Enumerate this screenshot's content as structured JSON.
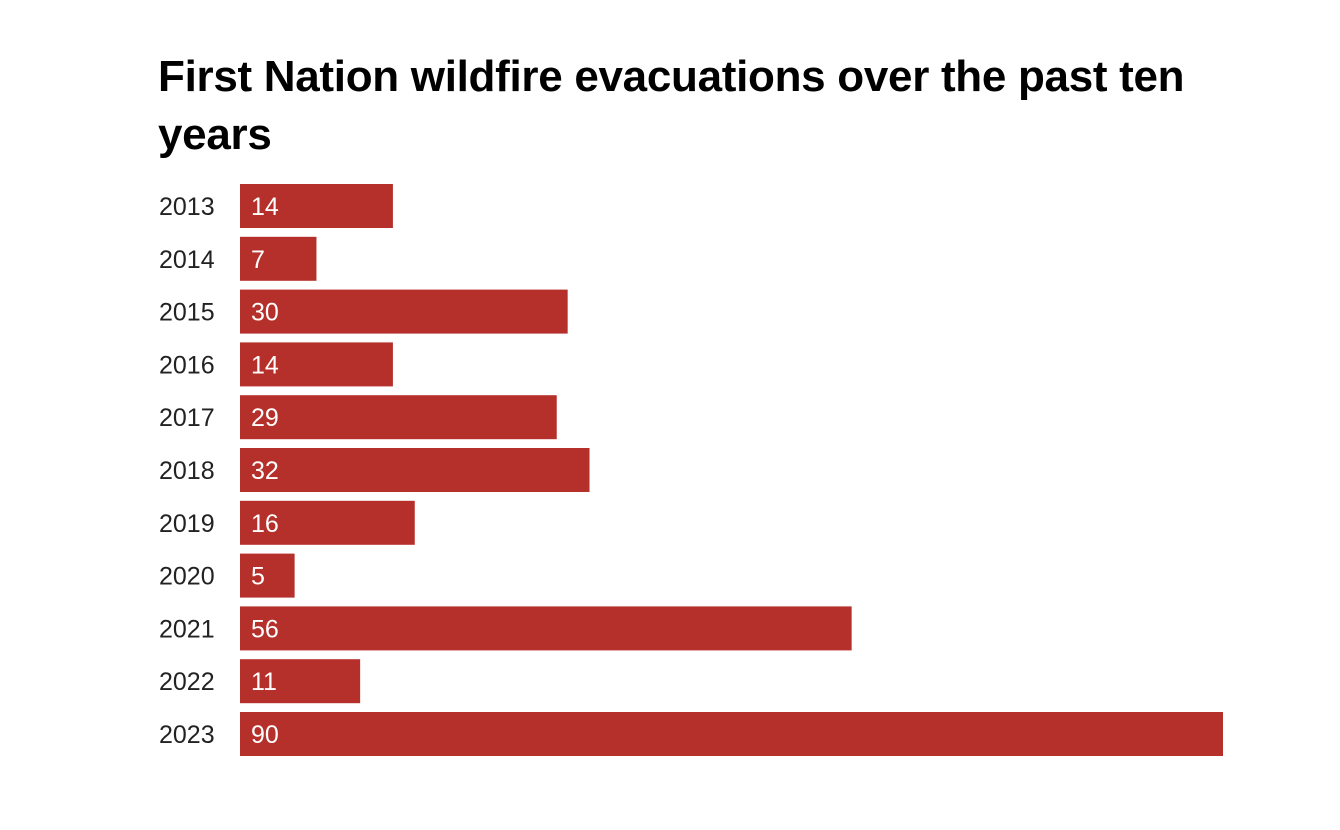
{
  "chart_data": {
    "type": "bar",
    "orientation": "horizontal",
    "title": "First Nation wildfire evacuations over the past ten years",
    "categories": [
      "2013",
      "2014",
      "2015",
      "2016",
      "2017",
      "2018",
      "2019",
      "2020",
      "2021",
      "2022",
      "2023"
    ],
    "values": [
      14,
      7,
      30,
      14,
      29,
      32,
      16,
      5,
      56,
      11,
      90
    ],
    "xlim": [
      0,
      90
    ],
    "grid": false,
    "legend": "none",
    "bar_color": "#b5302b",
    "label_color": "#ffffff"
  }
}
